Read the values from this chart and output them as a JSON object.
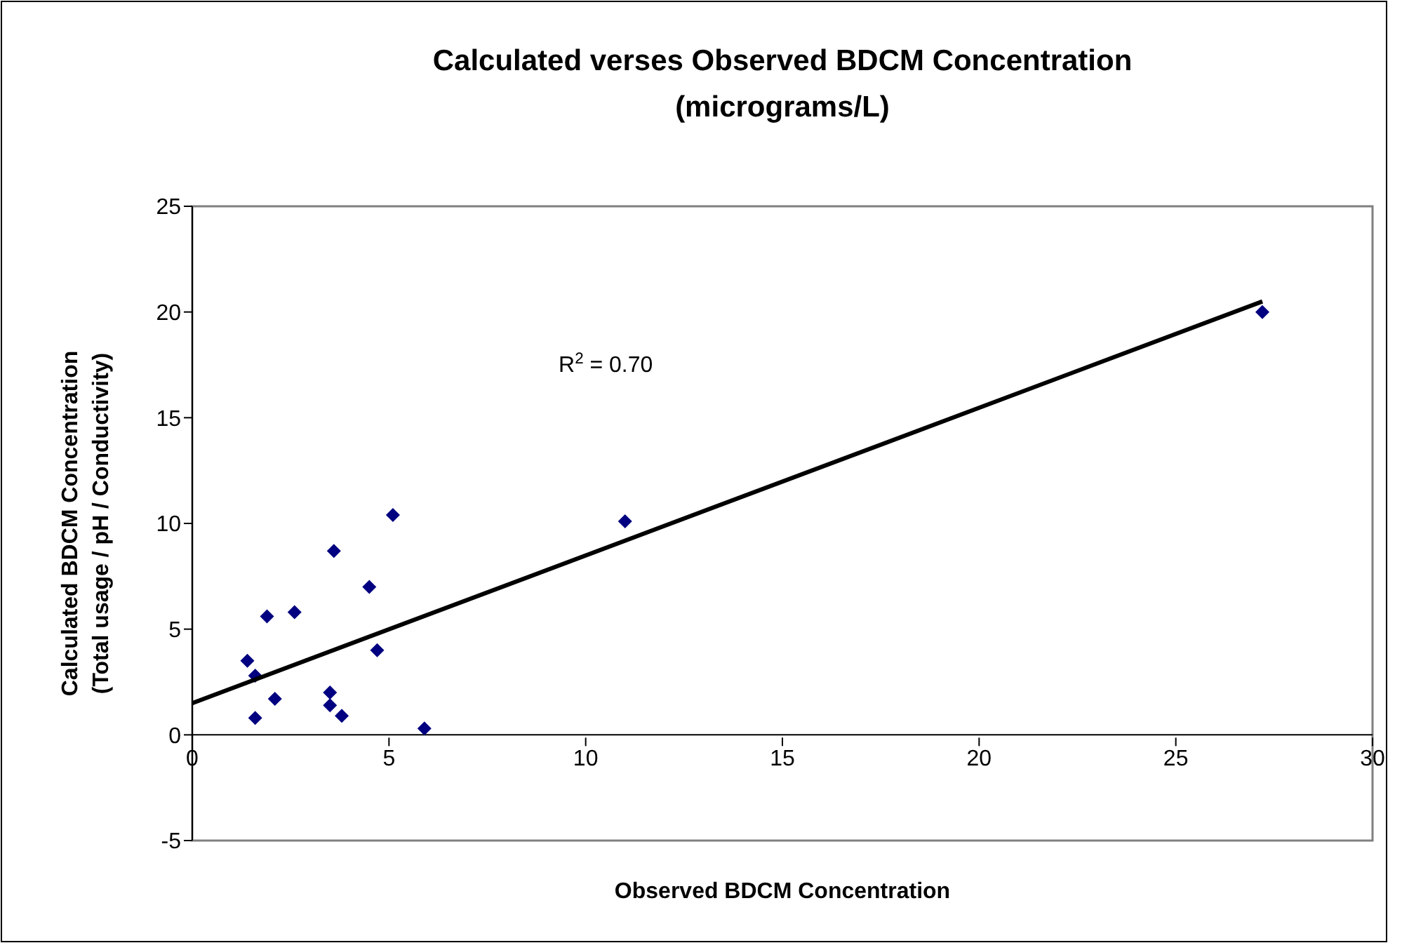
{
  "chart_data": {
    "type": "scatter",
    "title": "Calculated verses Observed BDCM Concentration\n(micrograms/L)",
    "xlabel": "Observed BDCM Concentration",
    "ylabel": "Calculated BDCM Concentration\n(Total usage / pH / Conductivity)",
    "annotations": [
      "R$^{2}$ = 0.70"
    ],
    "xlim": [
      0,
      30
    ],
    "xticks": [
      0,
      5,
      10,
      15,
      20,
      25,
      30
    ],
    "ylim": [
      -5,
      25
    ],
    "yticks": [
      -5,
      0,
      5,
      10,
      15,
      20,
      25
    ],
    "marker": "diamond",
    "series": [
      {
        "type": "scatter",
        "color": "#000080",
        "x": [
          1.4,
          1.6,
          1.6,
          1.9,
          2.1,
          2.6,
          3.5,
          3.5,
          3.6,
          3.8,
          4.5,
          4.7,
          5.1,
          5.9,
          11.0,
          27.2
        ],
        "values": [
          3.5,
          2.8,
          0.8,
          5.6,
          1.7,
          5.8,
          2.0,
          1.4,
          8.7,
          0.9,
          7.0,
          4.0,
          10.4,
          0.3,
          10.1,
          20.0
        ]
      },
      {
        "type": "line",
        "color": "#000000",
        "marker": "none",
        "x": [
          0,
          27.2
        ],
        "values": [
          1.5,
          20.5
        ]
      }
    ]
  }
}
